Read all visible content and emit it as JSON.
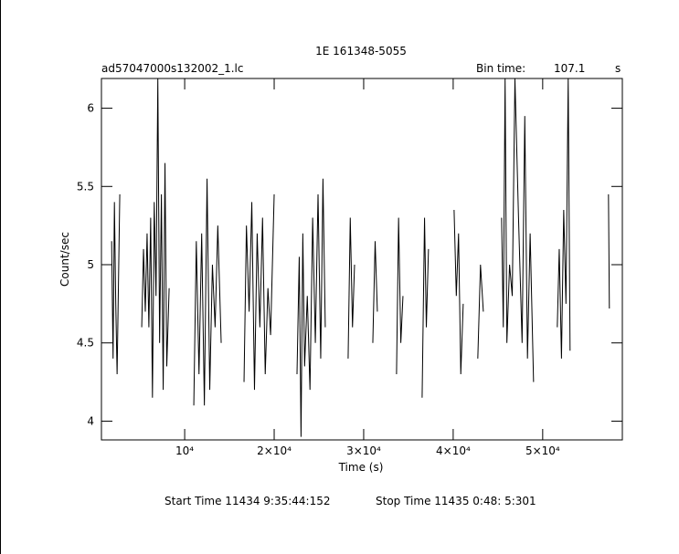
{
  "chart_data": {
    "type": "line",
    "title": "1E 161348-5055",
    "file_label": "ad57047000s132002_1.lc",
    "bin_time_label": "Bin time:",
    "bin_time": "107.1",
    "bin_time_unit": "s",
    "xlabel": "Time (s)",
    "ylabel": "Count/sec",
    "start_time": "Start Time 11434  9:35:44:152",
    "stop_time": "Stop Time 11435  0:48: 5:301",
    "color": "#000000",
    "xlim": [
      700,
      58900
    ],
    "ylim": [
      3.88,
      6.19
    ],
    "xticks": [
      {
        "value": 10000,
        "label": "10⁴"
      },
      {
        "value": 20000,
        "label": "2×10⁴"
      },
      {
        "value": 30000,
        "label": "3×10⁴"
      },
      {
        "value": 40000,
        "label": "4×10⁴"
      },
      {
        "value": 50000,
        "label": "5×10⁴"
      }
    ],
    "yticks": [
      4,
      4.5,
      5,
      5.5,
      6
    ],
    "x": [
      1840,
      2000,
      2150,
      2300,
      2450,
      2750,
      4000,
      5200,
      5400,
      5600,
      5800,
      6000,
      6200,
      6400,
      6600,
      6800,
      7000,
      7200,
      7400,
      7600,
      7800,
      8000,
      8265,
      9600,
      11020,
      11300,
      11600,
      11900,
      12200,
      12500,
      12800,
      13100,
      13400,
      13700,
      14080,
      15300,
      16630,
      16900,
      17200,
      17500,
      17800,
      18100,
      18400,
      18700,
      19000,
      19300,
      19600,
      20000,
      21300,
      22550,
      22800,
      23000,
      23200,
      23400,
      23700,
      24000,
      24300,
      24600,
      24900,
      25200,
      25450,
      25710,
      27000,
      28260,
      28500,
      28750,
      28980,
      30000,
      31020,
      31280,
      31530,
      32600,
      33670,
      33900,
      34150,
      34390,
      35500,
      36530,
      36800,
      37000,
      37240,
      38700,
      40100,
      40350,
      40600,
      40850,
      41120,
      42000,
      42750,
      43050,
      43370,
      44400,
      45410,
      45600,
      45800,
      46000,
      46300,
      46600,
      46900,
      47300,
      47700,
      48000,
      48300,
      48600,
      48980,
      50300,
      51630,
      51850,
      52100,
      52350,
      52600,
      52850,
      53060,
      55200,
      57350,
      57450
    ],
    "values": [
      5.15,
      4.4,
      5.4,
      4.75,
      4.3,
      5.45,
      null,
      4.6,
      5.1,
      4.7,
      5.2,
      4.6,
      5.3,
      4.15,
      5.4,
      4.8,
      6.19,
      4.5,
      5.45,
      4.2,
      5.65,
      4.35,
      4.85,
      null,
      4.1,
      5.15,
      4.3,
      5.2,
      4.1,
      5.55,
      4.2,
      5.0,
      4.6,
      5.25,
      4.5,
      null,
      4.25,
      5.25,
      4.7,
      5.4,
      4.2,
      5.2,
      4.6,
      5.3,
      4.3,
      4.85,
      4.55,
      5.45,
      null,
      4.3,
      5.05,
      3.9,
      5.2,
      4.35,
      4.8,
      4.2,
      5.3,
      4.5,
      5.45,
      4.4,
      5.55,
      4.6,
      null,
      4.4,
      5.3,
      4.6,
      5.0,
      null,
      4.5,
      5.15,
      4.7,
      null,
      4.3,
      5.3,
      4.5,
      4.8,
      null,
      4.15,
      5.3,
      4.6,
      5.1,
      null,
      5.35,
      4.8,
      5.2,
      4.3,
      4.75,
      null,
      4.4,
      5.0,
      4.7,
      null,
      5.3,
      4.6,
      6.19,
      4.5,
      5.0,
      4.8,
      6.19,
      5.3,
      4.5,
      5.95,
      4.4,
      5.2,
      4.25,
      null,
      4.6,
      5.1,
      4.4,
      5.35,
      4.75,
      6.19,
      4.45,
      null,
      5.45,
      4.72
    ]
  }
}
